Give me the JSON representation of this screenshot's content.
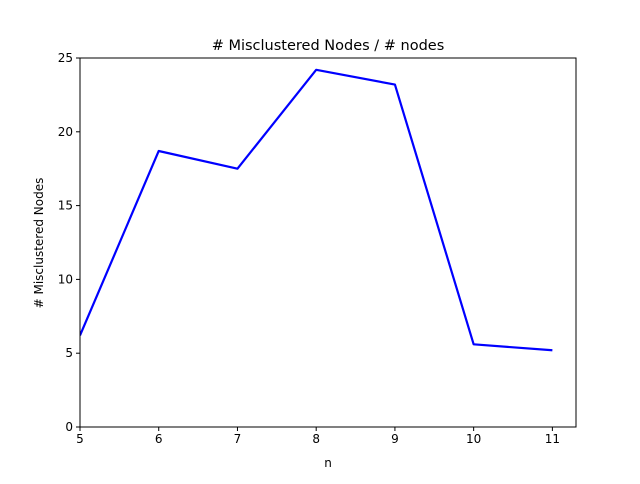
{
  "chart_data": {
    "type": "line",
    "title": "# Misclustered Nodes / # nodes",
    "xlabel": "n",
    "ylabel": "# Misclustered Nodes",
    "x": [
      5,
      6,
      7,
      8,
      9,
      10,
      11
    ],
    "series": [
      {
        "values": [
          6.2,
          18.7,
          17.5,
          24.2,
          23.2,
          5.6,
          5.2
        ],
        "color": "#0000ff"
      }
    ],
    "xlim": [
      5,
      11.3
    ],
    "ylim": [
      0,
      25
    ],
    "xticks": [
      5,
      6,
      7,
      8,
      9,
      10,
      11
    ],
    "yticks": [
      0,
      5,
      10,
      15,
      20,
      25
    ],
    "grid": false,
    "legend": "none"
  }
}
